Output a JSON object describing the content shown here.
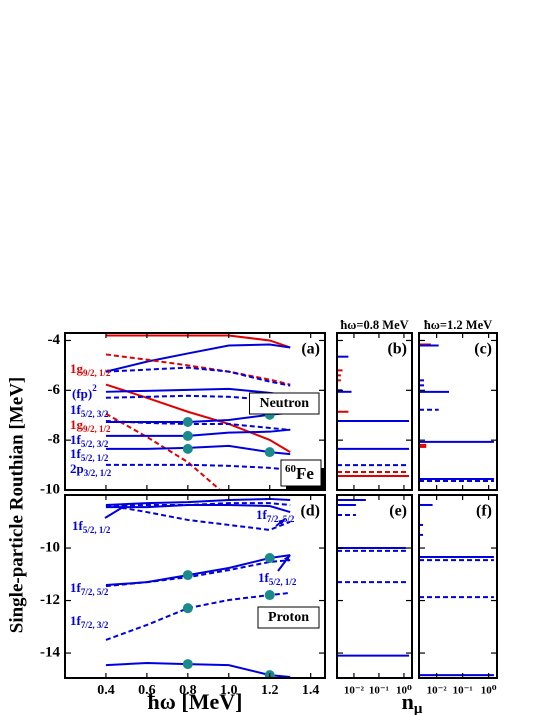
{
  "figure": {
    "ylabel": "Single-particle Routhian [MeV]",
    "xlabel": "ħω [MeV]",
    "xlabel_right": {
      "main": "n",
      "sub": "μ"
    }
  },
  "chart_data": [
    {
      "type": "line",
      "panel": "(a)",
      "box_label": "Neutron",
      "nucleus": {
        "mass": "60",
        "symbol": "Fe"
      },
      "xlim": [
        0.2,
        1.47
      ],
      "ylim": [
        -10,
        -3.7
      ],
      "xticks": [
        0.4,
        0.6,
        0.8,
        1,
        1.2,
        1.4
      ],
      "yticks": [
        -10,
        -8,
        -6,
        -4
      ],
      "show_xtick_labels": false,
      "show_ytick_labels": true,
      "x": [
        0.4,
        0.6,
        0.8,
        1.0,
        1.2,
        1.3
      ],
      "series": [
        {
          "color": "#e00000",
          "dash": false,
          "values": [
            -3.8,
            -3.8,
            -3.8,
            -3.8,
            -4.0,
            -4.28
          ]
        },
        {
          "color": "#0000dd",
          "dash": false,
          "values": [
            -5.25,
            -4.85,
            -4.52,
            -4.2,
            -4.16,
            -4.28
          ]
        },
        {
          "color": "#e00000",
          "dash": true,
          "values": [
            -4.56,
            -4.77,
            -5.0,
            -5.25,
            -5.57,
            -5.77
          ]
        },
        {
          "color": "#e00000",
          "dash": false,
          "values": [
            -5.77,
            -6.3,
            -6.86,
            -7.35,
            -7.99,
            -8.48
          ]
        },
        {
          "color": "#e00000",
          "dash": true,
          "values": [
            -6.94,
            -7.87,
            -8.88,
            -10.3,
            null,
            null
          ]
        },
        {
          "color": "#0000dd",
          "dash": true,
          "values": [
            -5.25,
            -5.17,
            -5.09,
            -5.25,
            -5.65,
            -5.81
          ]
        },
        {
          "color": "#0000dd",
          "dash": false,
          "values": [
            -6.06,
            -6.02,
            -5.98,
            -5.94,
            -6.1,
            -6.22
          ]
        },
        {
          "color": "#0000dd",
          "dash": true,
          "values": [
            -6.3,
            -6.26,
            -6.22,
            -6.26,
            -6.38,
            -6.46
          ]
        },
        {
          "color": "#0000dd",
          "dash": true,
          "values": [
            -7.23,
            -7.31,
            -7.35,
            -7.35,
            -7.51,
            -7.59
          ]
        },
        {
          "color": "#0000dd",
          "dash": false,
          "values": [
            -7.27,
            -7.27,
            -7.27,
            -7.19,
            -6.98,
            -6.9
          ]
        },
        {
          "color": "#0000dd",
          "dash": false,
          "values": [
            -7.83,
            -7.83,
            -7.83,
            -7.7,
            -7.66,
            -7.58
          ]
        },
        {
          "color": "#0000dd",
          "dash": false,
          "values": [
            -8.35,
            -8.35,
            -8.31,
            -8.23,
            -8.48,
            -8.56
          ]
        },
        {
          "color": "#0000dd",
          "dash": true,
          "values": [
            -8.99,
            -8.99,
            -8.99,
            -9.03,
            -9.11,
            -9.19
          ]
        }
      ],
      "markers": {
        "color": "#1a8a8a",
        "x": [
          0.8,
          0.8,
          0.8,
          1.2,
          1.2
        ],
        "y": [
          -7.27,
          -7.83,
          -8.35,
          -6.98,
          -8.48
        ]
      },
      "labels": [
        {
          "color": "#e00000",
          "main": "1g",
          "sub": "9/2, 1/2"
        },
        {
          "color": "#0000dd",
          "main": "(fp)",
          "sup": "2"
        },
        {
          "color": "#0000dd",
          "main": "1f",
          "sub": "5/2, 3/2"
        },
        {
          "color": "#e00000",
          "main": "1g",
          "sub": "9/2, 1/2"
        },
        {
          "color": "#0000dd",
          "main": "1f",
          "sub": "5/2, 3/2"
        },
        {
          "color": "#0000dd",
          "main": "1f",
          "sub": "5/2, 1/2"
        },
        {
          "color": "#0000dd",
          "main": "2p",
          "sub": "3/2, 1/2"
        }
      ]
    },
    {
      "type": "stick",
      "panel": "(b)",
      "header": "ħω=0.8 MeV",
      "xlog": true,
      "xlim": [
        0.0021,
        2.1
      ],
      "ylim": [
        -10,
        -3.7
      ],
      "xticks": [
        0.01,
        0.1,
        1
      ],
      "yticks": [
        -10,
        -8,
        -6,
        -4
      ],
      "show_xtick_labels": false,
      "show_ytick_labels": false,
      "series": [
        {
          "color": "#0000dd",
          "dash": false,
          "energies": [
            -4.65,
            -6.06,
            -7.23,
            -8.35
          ],
          "occupations": [
            0.006,
            0.008,
            1.6,
            1.6
          ]
        },
        {
          "color": "#e00000",
          "dash": false,
          "energies": [
            -5.2,
            -6.86,
            -9.44
          ],
          "occupations": [
            0.0035,
            0.006,
            1.6
          ]
        },
        {
          "color": "#e00000",
          "dash": true,
          "energies": [
            -5.4,
            -5.6,
            -9.28
          ],
          "occupations": [
            0.003,
            0.003,
            1.6
          ]
        },
        {
          "color": "#0000dd",
          "dash": true,
          "energies": [
            -6.0,
            -9.0
          ],
          "occupations": [
            0.004,
            1.6
          ]
        }
      ]
    },
    {
      "type": "stick",
      "panel": "(c)",
      "header": "ħω=1.2 MeV",
      "xlog": true,
      "xlim": [
        0.0021,
        2.1
      ],
      "ylim": [
        -10,
        -3.7
      ],
      "xticks": [
        0.01,
        0.1,
        1
      ],
      "yticks": [
        -10,
        -8,
        -6,
        -4
      ],
      "show_xtick_labels": false,
      "show_ytick_labels": false,
      "series": [
        {
          "color": "#e00000",
          "dash": false,
          "energies": [
            -4.16,
            -8.19,
            -8.27
          ],
          "occupations": [
            0.006,
            0.004,
            0.004
          ]
        },
        {
          "color": "#0000dd",
          "dash": false,
          "energies": [
            -4.2,
            -6.06,
            -8.07,
            -9.56
          ],
          "occupations": [
            0.012,
            0.03,
            1.6,
            1.6
          ]
        },
        {
          "color": "#0000dd",
          "dash": true,
          "energies": [
            -5.6,
            -5.8,
            -6.78,
            -9.64
          ],
          "occupations": [
            0.004,
            0.004,
            0.012,
            1.6
          ]
        }
      ]
    },
    {
      "type": "line",
      "panel": "(d)",
      "box_label": "Proton",
      "xlim": [
        0.2,
        1.47
      ],
      "ylim": [
        -14.95,
        -7.98
      ],
      "xticks": [
        0.4,
        0.6,
        0.8,
        {
          "value": 1,
          "label": "1.0"
        },
        1.2,
        1.4
      ],
      "yticks": [
        -14,
        -12,
        -10
      ],
      "show_xtick_labels": true,
      "show_ytick_labels": true,
      "x": [
        0.4,
        0.6,
        0.8,
        1.0,
        1.2,
        1.3
      ],
      "series": [
        {
          "color": "#0000dd",
          "dash": false,
          "values": [
            -8.36,
            -8.29,
            -8.25,
            -8.17,
            -8.13,
            -8.17
          ]
        },
        {
          "color": "#0000dd",
          "dash": true,
          "values": [
            -8.4,
            -8.36,
            -8.36,
            -8.29,
            -8.29,
            -8.36
          ]
        },
        {
          "color": "#0000dd",
          "dash": true,
          "values": [
            -8.36,
            -8.63,
            -8.93,
            -9.12,
            -9.31,
            -9.0
          ]
        },
        {
          "color": "#0000dd",
          "dash": false,
          "values": [
            -8.44,
            -8.44,
            -8.36,
            -8.36,
            -8.4,
            -8.63
          ]
        },
        {
          "color": "#0000dd",
          "dash": false,
          "values": [
            -11.41,
            -11.3,
            -11.03,
            -10.76,
            -10.38,
            -10.27
          ]
        },
        {
          "color": "#0000dd",
          "dash": true,
          "values": [
            -11.45,
            -11.3,
            -11.11,
            -10.84,
            -10.53,
            -10.46
          ]
        },
        {
          "color": "#0000dd",
          "dash": true,
          "values": [
            -13.5,
            -12.93,
            -12.29,
            -11.98,
            -11.79,
            -11.71
          ]
        },
        {
          "color": "#0000dd",
          "dash": false,
          "values": [
            -14.46,
            -14.38,
            -14.42,
            -14.46,
            -14.84,
            -14.91
          ]
        }
      ],
      "markers": {
        "color": "#1a8a8a",
        "x": [
          0.8,
          1.2,
          0.8,
          1.2,
          0.8,
          1.2
        ],
        "y": [
          -11.03,
          -10.38,
          -12.29,
          -11.79,
          -14.42,
          -14.84
        ]
      },
      "labels": [
        {
          "color": "#0000dd",
          "main": "1f",
          "sub": "5/2, 1/2"
        },
        {
          "color": "#0000dd",
          "main": "1f",
          "sub": "7/2, 5/2"
        },
        {
          "color": "#0000dd",
          "main": "1f",
          "sub": "5/2, 1/2"
        },
        {
          "color": "#0000dd",
          "main": "1f",
          "sub": "7/2, 5/2"
        },
        {
          "color": "#0000dd",
          "main": "1f",
          "sub": "7/2, 3/2"
        }
      ]
    },
    {
      "type": "stick",
      "panel": "(e)",
      "xlog": true,
      "xlim": [
        0.0021,
        2.1
      ],
      "ylim": [
        -14.95,
        -7.98
      ],
      "xticks": [
        {
          "value": 0.01,
          "label": "10⁻²"
        },
        {
          "value": 0.1,
          "label": "10⁻¹"
        },
        {
          "value": 1,
          "label": "10⁰"
        }
      ],
      "yticks": [
        -14,
        -12,
        -10
      ],
      "show_xtick_labels": true,
      "show_ytick_labels": false,
      "series": [
        {
          "color": "#0000dd",
          "dash": false,
          "energies": [
            -8.17,
            -8.36,
            -10.0,
            -14.1
          ],
          "occupations": [
            0.03,
            0.012,
            1.2,
            1.6
          ]
        },
        {
          "color": "#0000dd",
          "dash": true,
          "energies": [
            -8.74,
            -10.11,
            -11.3
          ],
          "occupations": [
            0.012,
            1.2,
            1.6
          ]
        }
      ]
    },
    {
      "type": "stick",
      "panel": "(f)",
      "xlog": true,
      "xlim": [
        0.0021,
        2.1
      ],
      "ylim": [
        -14.95,
        -7.98
      ],
      "xticks": [
        {
          "value": 0.01,
          "label": "10⁻²"
        },
        {
          "value": 0.1,
          "label": "10⁻¹"
        },
        {
          "value": 1,
          "label": "10⁰"
        }
      ],
      "yticks": [
        -14,
        -12,
        -10
      ],
      "show_xtick_labels": true,
      "show_ytick_labels": false,
      "series": [
        {
          "color": "#0000dd",
          "dash": false,
          "energies": [
            -8.36,
            -10.34,
            -14.84
          ],
          "occupations": [
            0.007,
            1.6,
            1.6
          ]
        },
        {
          "color": "#0000dd",
          "dash": true,
          "energies": [
            -9.12,
            -9.5,
            -10.46,
            -11.87
          ],
          "occupations": [
            0.003,
            0.003,
            1.6,
            1.6
          ]
        }
      ]
    }
  ]
}
